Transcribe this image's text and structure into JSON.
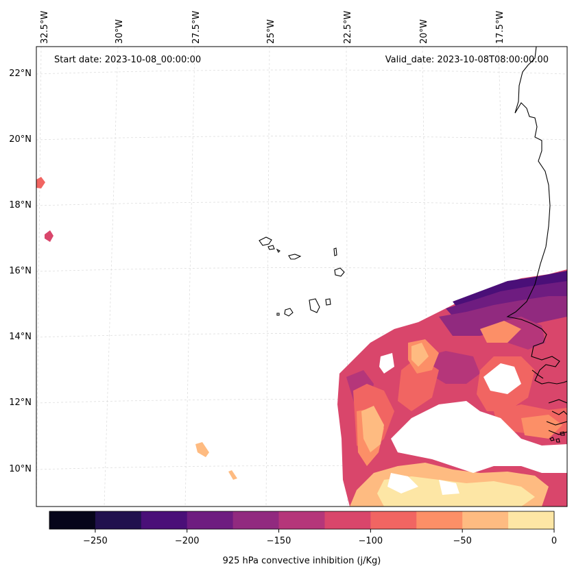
{
  "annotations": {
    "start_date": "Start date: 2023-10-08_00:00:00",
    "valid_date": "Valid_date: 2023-10-08T08:00:00.00"
  },
  "lon_labels": [
    "32.5°W",
    "30°W",
    "27.5°W",
    "25°W",
    "22.5°W",
    "20°W",
    "17.5°W"
  ],
  "lat_labels": [
    "22°N",
    "20°N",
    "18°N",
    "16°N",
    "14°N",
    "12°N",
    "10°N"
  ],
  "colorbar": {
    "label": "925 hPa convective inhibition (j/Kg)",
    "tick_labels": [
      "−250",
      "−200",
      "−150",
      "−100",
      "−50",
      "0"
    ],
    "levels": [
      -275,
      -250,
      -225,
      -200,
      -175,
      -150,
      -125,
      -100,
      -75,
      -50,
      -25,
      0
    ],
    "colors": [
      "#06051a",
      "#21114e",
      "#4a0f78",
      "#6e1c80",
      "#912a7f",
      "#b5367a",
      "#d9466b",
      "#f16562",
      "#fc8f67",
      "#febb81",
      "#fde6a5"
    ]
  },
  "map_style": {
    "coastline_color": "#000000",
    "gridline_color": "#dddddd",
    "frame_color": "#000000",
    "grid": true,
    "projection": "conic"
  }
}
